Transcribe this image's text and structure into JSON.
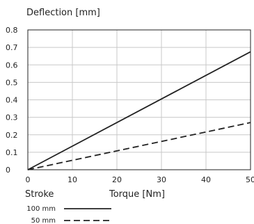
{
  "chart_data": {
    "type": "line",
    "ylabel": "Deflection [mm]",
    "xlabel": "Torque [Nm]",
    "legend_title": "Stroke",
    "xlim": [
      0,
      50
    ],
    "ylim": [
      0,
      0.8
    ],
    "x_ticks": [
      0,
      10,
      20,
      30,
      40,
      50
    ],
    "y_ticks": [
      0,
      0.1,
      0.2,
      0.3,
      0.4,
      0.5,
      0.6,
      0.7,
      0.8
    ],
    "x_tick_labels": [
      "0",
      "10",
      "20",
      "30",
      "40",
      "50"
    ],
    "y_tick_labels": [
      "0",
      "0.1",
      "0.2",
      "0.3",
      "0.4",
      "0.5",
      "0.6",
      "0.7",
      "0.8"
    ],
    "grid": true,
    "legend_position": "bottom-left",
    "series": [
      {
        "name": "100 mm",
        "style": "solid",
        "color": "#222222",
        "x": [
          0,
          50
        ],
        "y": [
          0,
          0.675
        ]
      },
      {
        "name": "50 mm",
        "style": "dashed",
        "color": "#222222",
        "x": [
          0,
          50
        ],
        "y": [
          0,
          0.27
        ]
      }
    ]
  }
}
